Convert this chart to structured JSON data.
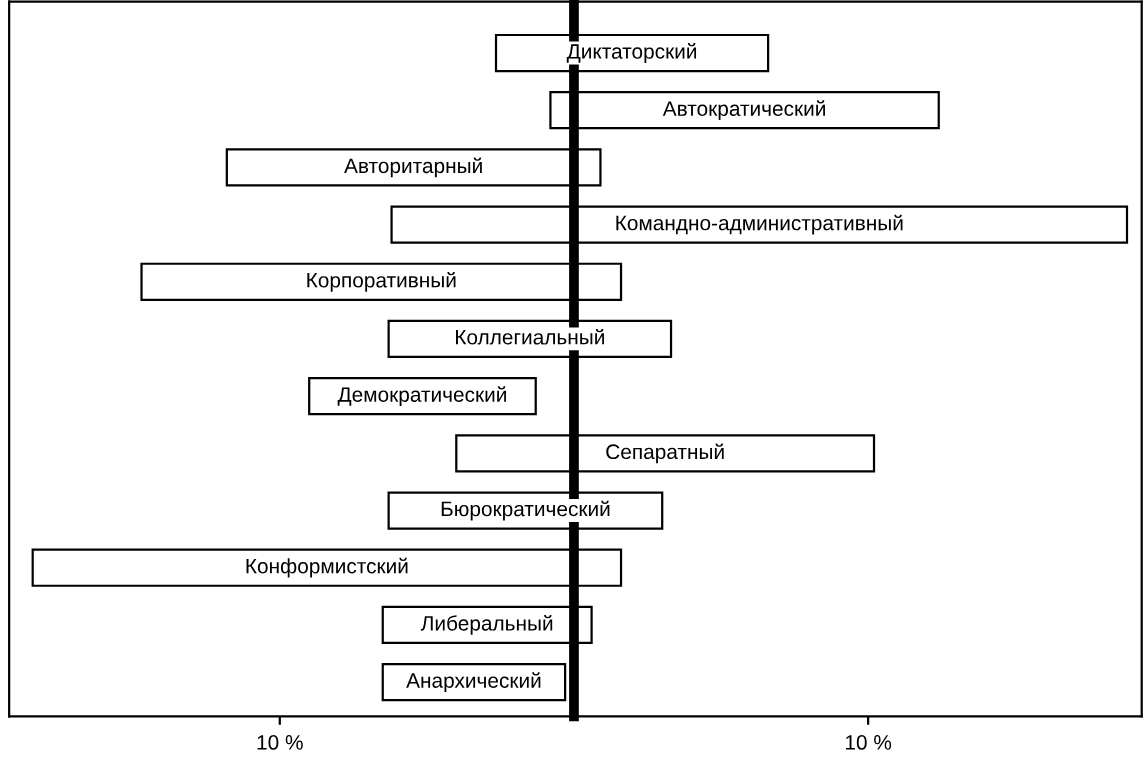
{
  "chart_data": {
    "type": "bar",
    "orientation": "horizontal",
    "categories": [
      "Диктаторский",
      "Автократический",
      "Авторитарный",
      "Командно-административный",
      "Корпоративный",
      "Коллегиальный",
      "Демократический",
      "Сепаратный",
      "Бюрократический",
      "Конформистский",
      "Либеральный",
      "Анархический"
    ],
    "base": [
      -2.65,
      -0.8,
      -11.8,
      -6.2,
      -14.7,
      -6.3,
      -9.0,
      -4.0,
      -6.3,
      -18.4,
      -6.5,
      -6.5
    ],
    "values": [
      9.25,
      13.2,
      12.7,
      25.0,
      16.3,
      9.6,
      7.7,
      14.2,
      9.3,
      20.0,
      7.1,
      6.2
    ],
    "color": "#ffffff",
    "xlim": [
      -19.2,
      19.3
    ],
    "xticks": [
      {
        "value": -10,
        "label": "10 %"
      },
      {
        "value": 10,
        "label": "10 %"
      }
    ],
    "tick_labels": "x",
    "grid": false,
    "legend": false
  }
}
